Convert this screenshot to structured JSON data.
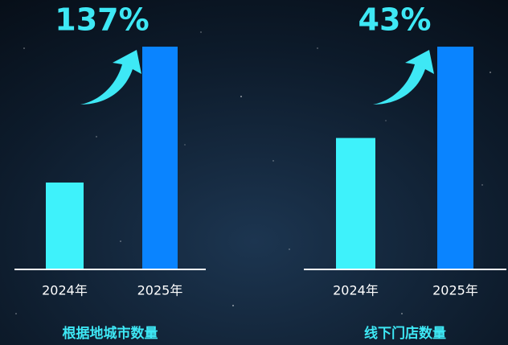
{
  "chart_data": [
    {
      "type": "bar",
      "title": "根据地城市数量",
      "annotation": "137%",
      "categories": [
        "2024年",
        "2025年"
      ],
      "values": [
        39,
        100
      ],
      "colors": [
        "#3ef2fb",
        "#0a84ff"
      ],
      "ylim": [
        0,
        100
      ]
    },
    {
      "type": "bar",
      "title": "线下门店数量",
      "annotation": "43%",
      "categories": [
        "2024年",
        "2025年"
      ],
      "values": [
        59,
        100
      ],
      "colors": [
        "#3ef2fb",
        "#0a84ff"
      ],
      "ylim": [
        0,
        100
      ]
    }
  ]
}
